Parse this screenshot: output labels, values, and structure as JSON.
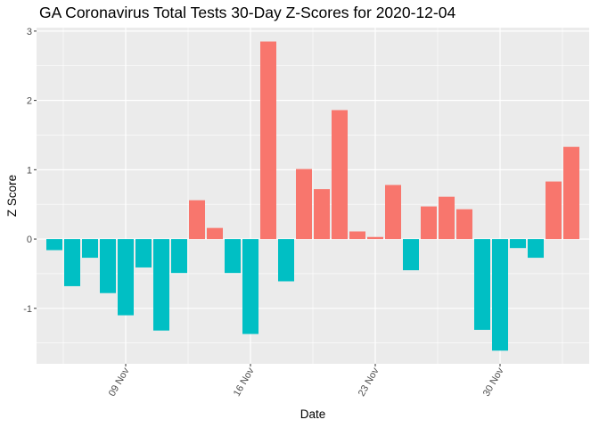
{
  "chart_data": {
    "type": "bar",
    "title": "GA Coronavirus Total Tests 30-Day Z-Scores for 2020-12-04",
    "xlabel": "Date",
    "ylabel": "Z Score",
    "dates": [
      "2020-11-05",
      "2020-11-06",
      "2020-11-07",
      "2020-11-08",
      "2020-11-09",
      "2020-11-10",
      "2020-11-11",
      "2020-11-12",
      "2020-11-13",
      "2020-11-14",
      "2020-11-15",
      "2020-11-16",
      "2020-11-17",
      "2020-11-18",
      "2020-11-19",
      "2020-11-20",
      "2020-11-21",
      "2020-11-22",
      "2020-11-23",
      "2020-11-24",
      "2020-11-25",
      "2020-11-26",
      "2020-11-27",
      "2020-11-28",
      "2020-11-29",
      "2020-11-30",
      "2020-12-01",
      "2020-12-02",
      "2020-12-03",
      "2020-12-04"
    ],
    "values": [
      -0.16,
      -0.68,
      -0.27,
      -0.78,
      -1.1,
      -0.41,
      -1.32,
      -0.49,
      0.56,
      0.16,
      -0.49,
      -1.37,
      2.85,
      -0.61,
      1.01,
      0.72,
      1.86,
      0.11,
      0.03,
      0.78,
      -0.45,
      0.47,
      0.61,
      0.43,
      -1.31,
      -1.61,
      -0.13,
      -0.27,
      0.83,
      1.33
    ],
    "x_ticks": [
      {
        "date": "2020-11-09",
        "label": "09 Nov"
      },
      {
        "date": "2020-11-16",
        "label": "16 Nov"
      },
      {
        "date": "2020-11-23",
        "label": "23 Nov"
      },
      {
        "date": "2020-11-30",
        "label": "30 Nov"
      }
    ],
    "y_ticks": [
      -1,
      0,
      1,
      2,
      3
    ],
    "ylim": [
      -1.8,
      3.05
    ],
    "colors": {
      "positive": "#F8766D",
      "negative": "#00BFC4",
      "panel": "#EBEBEB",
      "grid": "#FFFFFF"
    },
    "grid": true,
    "legend": "none"
  }
}
